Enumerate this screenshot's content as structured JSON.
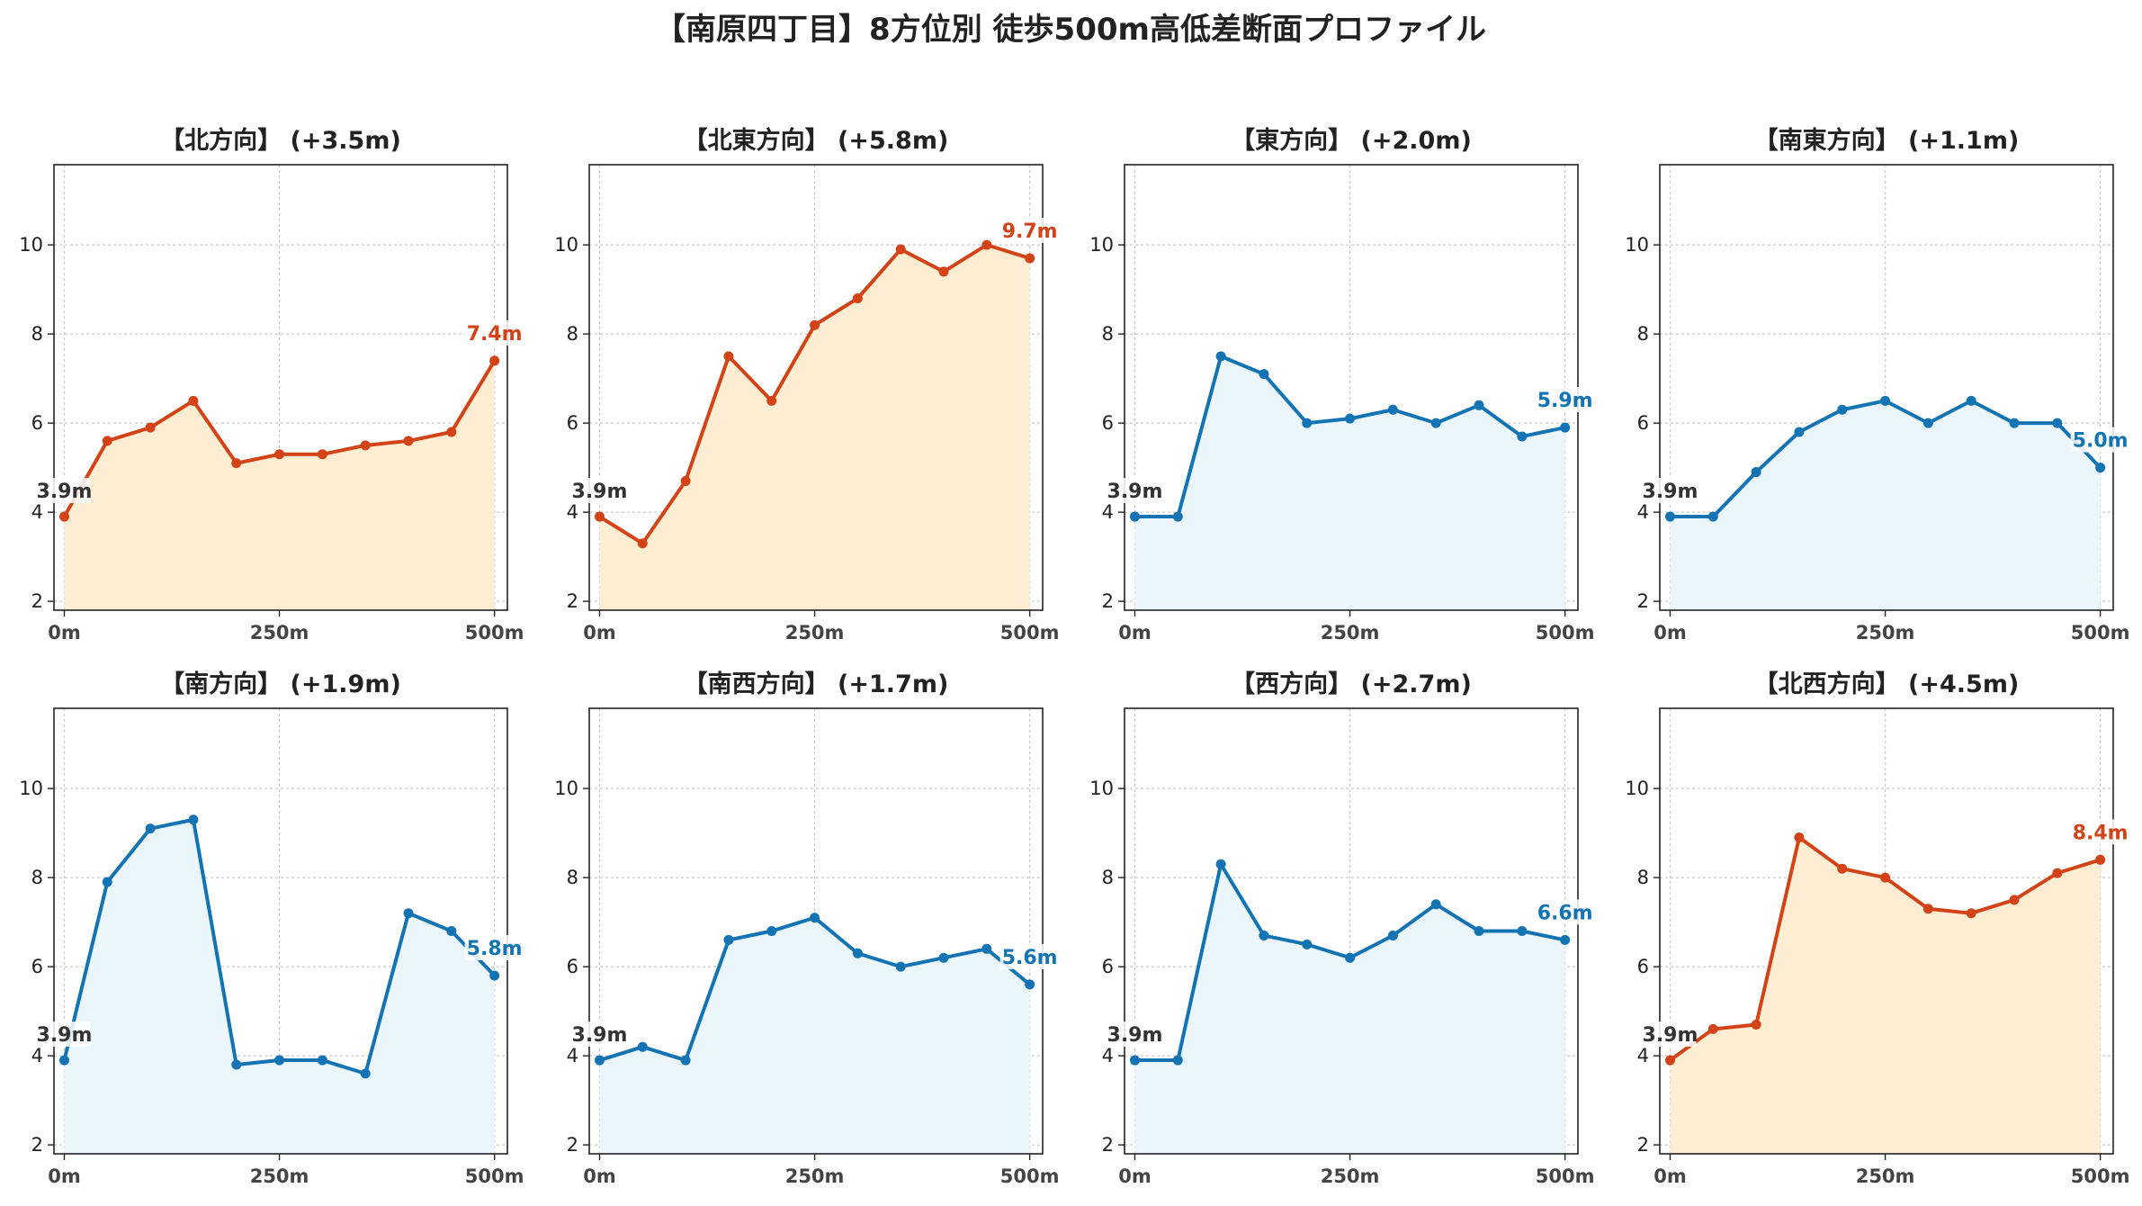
{
  "figure": {
    "suptitle": "【南原四丁目】8方位別 徒歩500m高低差断面プロファイル",
    "colors": {
      "up_line": "#d24317",
      "up_fill": "#fdeed3",
      "flat_line": "#1473b3",
      "flat_fill": "#eaf6fb",
      "start_label": "#333333",
      "grid": "#c8c8c8"
    }
  },
  "chart_data": [
    {
      "type": "area",
      "title": "【北方向】 (+3.5m)",
      "x": [
        0,
        50,
        100,
        150,
        200,
        250,
        300,
        350,
        400,
        450,
        500
      ],
      "y": [
        3.9,
        5.6,
        5.9,
        6.5,
        5.1,
        5.3,
        5.3,
        5.5,
        5.6,
        5.8,
        7.4
      ],
      "xticks": [
        "0m",
        "250m",
        "500m"
      ],
      "yticks": [
        2,
        4,
        6,
        8,
        10
      ],
      "xlim": [
        -12,
        515
      ],
      "ylim": [
        1.8,
        11.8
      ],
      "grid": true,
      "theme": "up",
      "start_label": "3.9m",
      "end_label": "7.4m"
    },
    {
      "type": "area",
      "title": "【北東方向】 (+5.8m)",
      "x": [
        0,
        50,
        100,
        150,
        200,
        250,
        300,
        350,
        400,
        450,
        500
      ],
      "y": [
        3.9,
        3.3,
        4.7,
        7.5,
        6.5,
        8.2,
        8.8,
        9.9,
        9.4,
        10.0,
        9.7
      ],
      "xticks": [
        "0m",
        "250m",
        "500m"
      ],
      "yticks": [
        2,
        4,
        6,
        8,
        10
      ],
      "xlim": [
        -12,
        515
      ],
      "ylim": [
        1.8,
        11.8
      ],
      "grid": true,
      "theme": "up",
      "start_label": "3.9m",
      "end_label": "9.7m"
    },
    {
      "type": "area",
      "title": "【東方向】 (+2.0m)",
      "x": [
        0,
        50,
        100,
        150,
        200,
        250,
        300,
        350,
        400,
        450,
        500
      ],
      "y": [
        3.9,
        3.9,
        7.5,
        7.1,
        6.0,
        6.1,
        6.3,
        6.0,
        6.4,
        5.7,
        5.9
      ],
      "xticks": [
        "0m",
        "250m",
        "500m"
      ],
      "yticks": [
        2,
        4,
        6,
        8,
        10
      ],
      "xlim": [
        -12,
        515
      ],
      "ylim": [
        1.8,
        11.8
      ],
      "grid": true,
      "theme": "flat",
      "start_label": "3.9m",
      "end_label": "5.9m"
    },
    {
      "type": "area",
      "title": "【南東方向】 (+1.1m)",
      "x": [
        0,
        50,
        100,
        150,
        200,
        250,
        300,
        350,
        400,
        450,
        500
      ],
      "y": [
        3.9,
        3.9,
        4.9,
        5.8,
        6.3,
        6.5,
        6.0,
        6.5,
        6.0,
        6.0,
        5.0
      ],
      "xticks": [
        "0m",
        "250m",
        "500m"
      ],
      "yticks": [
        2,
        4,
        6,
        8,
        10
      ],
      "xlim": [
        -12,
        515
      ],
      "ylim": [
        1.8,
        11.8
      ],
      "grid": true,
      "theme": "flat",
      "start_label": "3.9m",
      "end_label": "5.0m"
    },
    {
      "type": "area",
      "title": "【南方向】 (+1.9m)",
      "x": [
        0,
        50,
        100,
        150,
        200,
        250,
        300,
        350,
        400,
        450,
        500
      ],
      "y": [
        3.9,
        7.9,
        9.1,
        9.3,
        3.8,
        3.9,
        3.9,
        3.6,
        7.2,
        6.8,
        5.8
      ],
      "xticks": [
        "0m",
        "250m",
        "500m"
      ],
      "yticks": [
        2,
        4,
        6,
        8,
        10
      ],
      "xlim": [
        -12,
        515
      ],
      "ylim": [
        1.8,
        11.8
      ],
      "grid": true,
      "theme": "flat",
      "start_label": "3.9m",
      "end_label": "5.8m"
    },
    {
      "type": "area",
      "title": "【南西方向】 (+1.7m)",
      "x": [
        0,
        50,
        100,
        150,
        200,
        250,
        300,
        350,
        400,
        450,
        500
      ],
      "y": [
        3.9,
        4.2,
        3.9,
        6.6,
        6.8,
        7.1,
        6.3,
        6.0,
        6.2,
        6.4,
        5.6
      ],
      "xticks": [
        "0m",
        "250m",
        "500m"
      ],
      "yticks": [
        2,
        4,
        6,
        8,
        10
      ],
      "xlim": [
        -12,
        515
      ],
      "ylim": [
        1.8,
        11.8
      ],
      "grid": true,
      "theme": "flat",
      "start_label": "3.9m",
      "end_label": "5.6m"
    },
    {
      "type": "area",
      "title": "【西方向】 (+2.7m)",
      "x": [
        0,
        50,
        100,
        150,
        200,
        250,
        300,
        350,
        400,
        450,
        500
      ],
      "y": [
        3.9,
        3.9,
        8.3,
        6.7,
        6.5,
        6.2,
        6.7,
        7.4,
        6.8,
        6.8,
        6.6
      ],
      "xticks": [
        "0m",
        "250m",
        "500m"
      ],
      "yticks": [
        2,
        4,
        6,
        8,
        10
      ],
      "xlim": [
        -12,
        515
      ],
      "ylim": [
        1.8,
        11.8
      ],
      "grid": true,
      "theme": "flat",
      "start_label": "3.9m",
      "end_label": "6.6m"
    },
    {
      "type": "area",
      "title": "【北西方向】 (+4.5m)",
      "x": [
        0,
        50,
        100,
        150,
        200,
        250,
        300,
        350,
        400,
        450,
        500
      ],
      "y": [
        3.9,
        4.6,
        4.7,
        8.9,
        8.2,
        8.0,
        7.3,
        7.2,
        7.5,
        8.1,
        8.4
      ],
      "xticks": [
        "0m",
        "250m",
        "500m"
      ],
      "yticks": [
        2,
        4,
        6,
        8,
        10
      ],
      "xlim": [
        -12,
        515
      ],
      "ylim": [
        1.8,
        11.8
      ],
      "grid": true,
      "theme": "up",
      "start_label": "3.9m",
      "end_label": "8.4m"
    }
  ]
}
